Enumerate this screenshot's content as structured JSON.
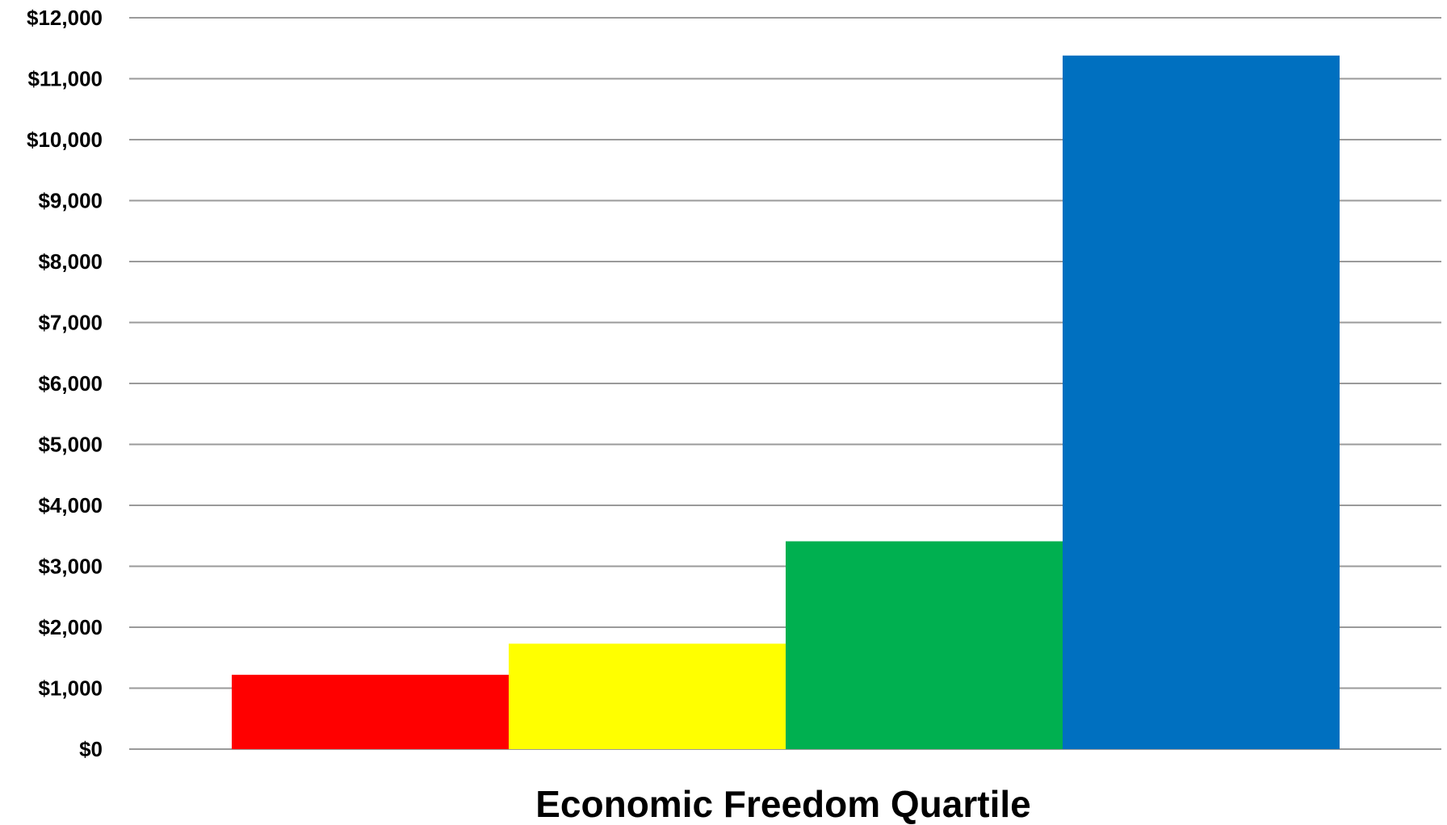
{
  "chart_data": {
    "type": "bar",
    "title": "",
    "xlabel": "Economic Freedom Quartile",
    "ylabel": "",
    "ylim": [
      0,
      12000
    ],
    "yticks": [
      0,
      1000,
      2000,
      3000,
      4000,
      5000,
      6000,
      7000,
      8000,
      9000,
      10000,
      11000,
      12000
    ],
    "ytick_labels": [
      "$0",
      "$1,000",
      "$2,000",
      "$3,000",
      "$4,000",
      "$5,000",
      "$6,000",
      "$7,000",
      "$8,000",
      "$9,000",
      "$10,000",
      "$11,000",
      "$12,000"
    ],
    "grid": true,
    "legend": "none",
    "categories": [
      "",
      "",
      "",
      ""
    ],
    "values": [
      1220,
      1730,
      3410,
      11380
    ],
    "colors": [
      "#ff0000",
      "#ffff00",
      "#00b050",
      "#0070c0"
    ]
  }
}
